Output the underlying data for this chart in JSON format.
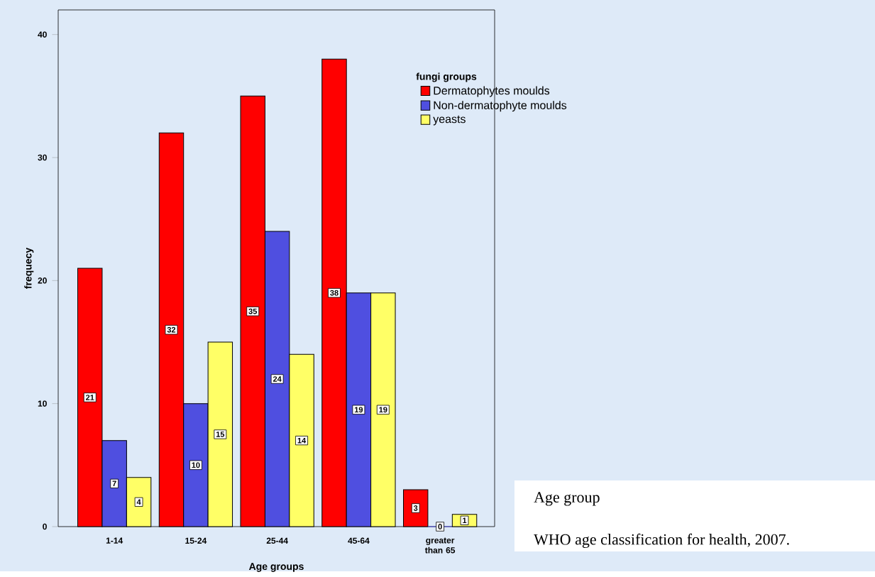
{
  "chart_data": {
    "type": "bar",
    "xlabel": "Age groups",
    "ylabel": "frequecy",
    "legend_title": "fungi groups",
    "categories": [
      "1-14",
      "15-24",
      "25-44",
      "45-64",
      "greater than 65"
    ],
    "series": [
      {
        "name": "Dermatophytes moulds",
        "color": "#ff0000",
        "values": [
          21,
          32,
          35,
          38,
          3
        ]
      },
      {
        "name": "Non-dermatophyte moulds",
        "color": "#4f4fe0",
        "values": [
          7,
          10,
          24,
          19,
          0
        ]
      },
      {
        "name": "yeasts",
        "color": "#ffff66",
        "values": [
          4,
          15,
          14,
          19,
          1
        ]
      }
    ],
    "ylim": [
      0,
      42
    ],
    "yticks": [
      0,
      10,
      20,
      30,
      40
    ],
    "data_labels": true,
    "legend": "top right",
    "grid": false,
    "annotations": [
      "Age group",
      "WHO age classification for health, 2007."
    ]
  }
}
